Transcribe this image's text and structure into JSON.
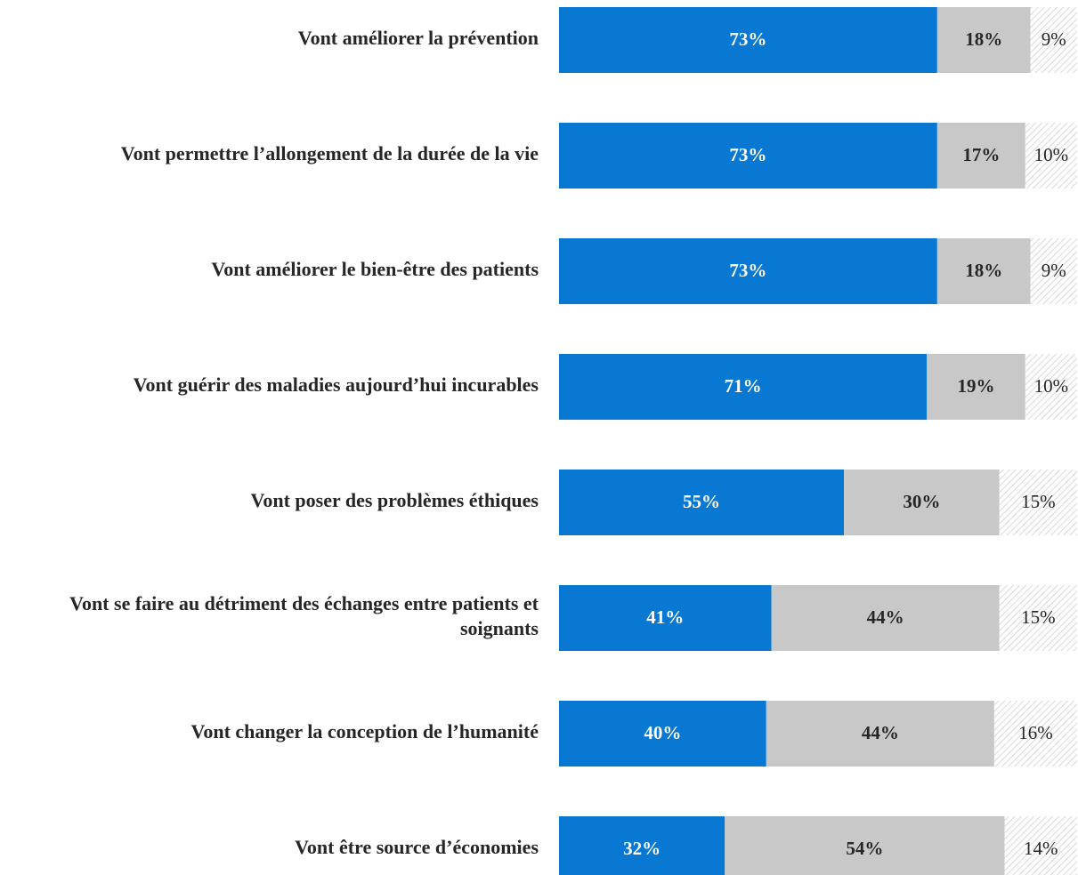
{
  "chart_data": {
    "type": "stacked-bar-100",
    "categories": [
      "Vont améliorer la prévention",
      "Vont permettre l’allongement de la durée de la vie",
      "Vont améliorer le bien-être des patients",
      "Vont guérir des maladies aujourd’hui incurables",
      "Vont poser des problèmes éthiques",
      "Vont se faire au détriment des échanges entre patients et soignants",
      "Vont changer la conception de l’humanité",
      "Vont être source d’économies"
    ],
    "series": [
      {
        "color": "#0878d2",
        "values": [
          73,
          73,
          73,
          71,
          55,
          41,
          40,
          32
        ],
        "value_labels": [
          "73%",
          "73%",
          "73%",
          "71%",
          "55%",
          "41%",
          "40%",
          "32%"
        ]
      },
      {
        "color": "#c8c8c8",
        "values": [
          18,
          17,
          18,
          19,
          30,
          44,
          44,
          54
        ],
        "value_labels": [
          "18%",
          "17%",
          "18%",
          "19%",
          "30%",
          "44%",
          "44%",
          "54%"
        ]
      },
      {
        "color": "#d0d0d0",
        "pattern": "hatch",
        "values": [
          9,
          10,
          9,
          10,
          15,
          15,
          16,
          14
        ],
        "value_labels": [
          "9%",
          "10%",
          "9%",
          "10%",
          "15%",
          "15%",
          "16%",
          "14%"
        ]
      }
    ],
    "xlim": [
      0,
      100
    ]
  }
}
